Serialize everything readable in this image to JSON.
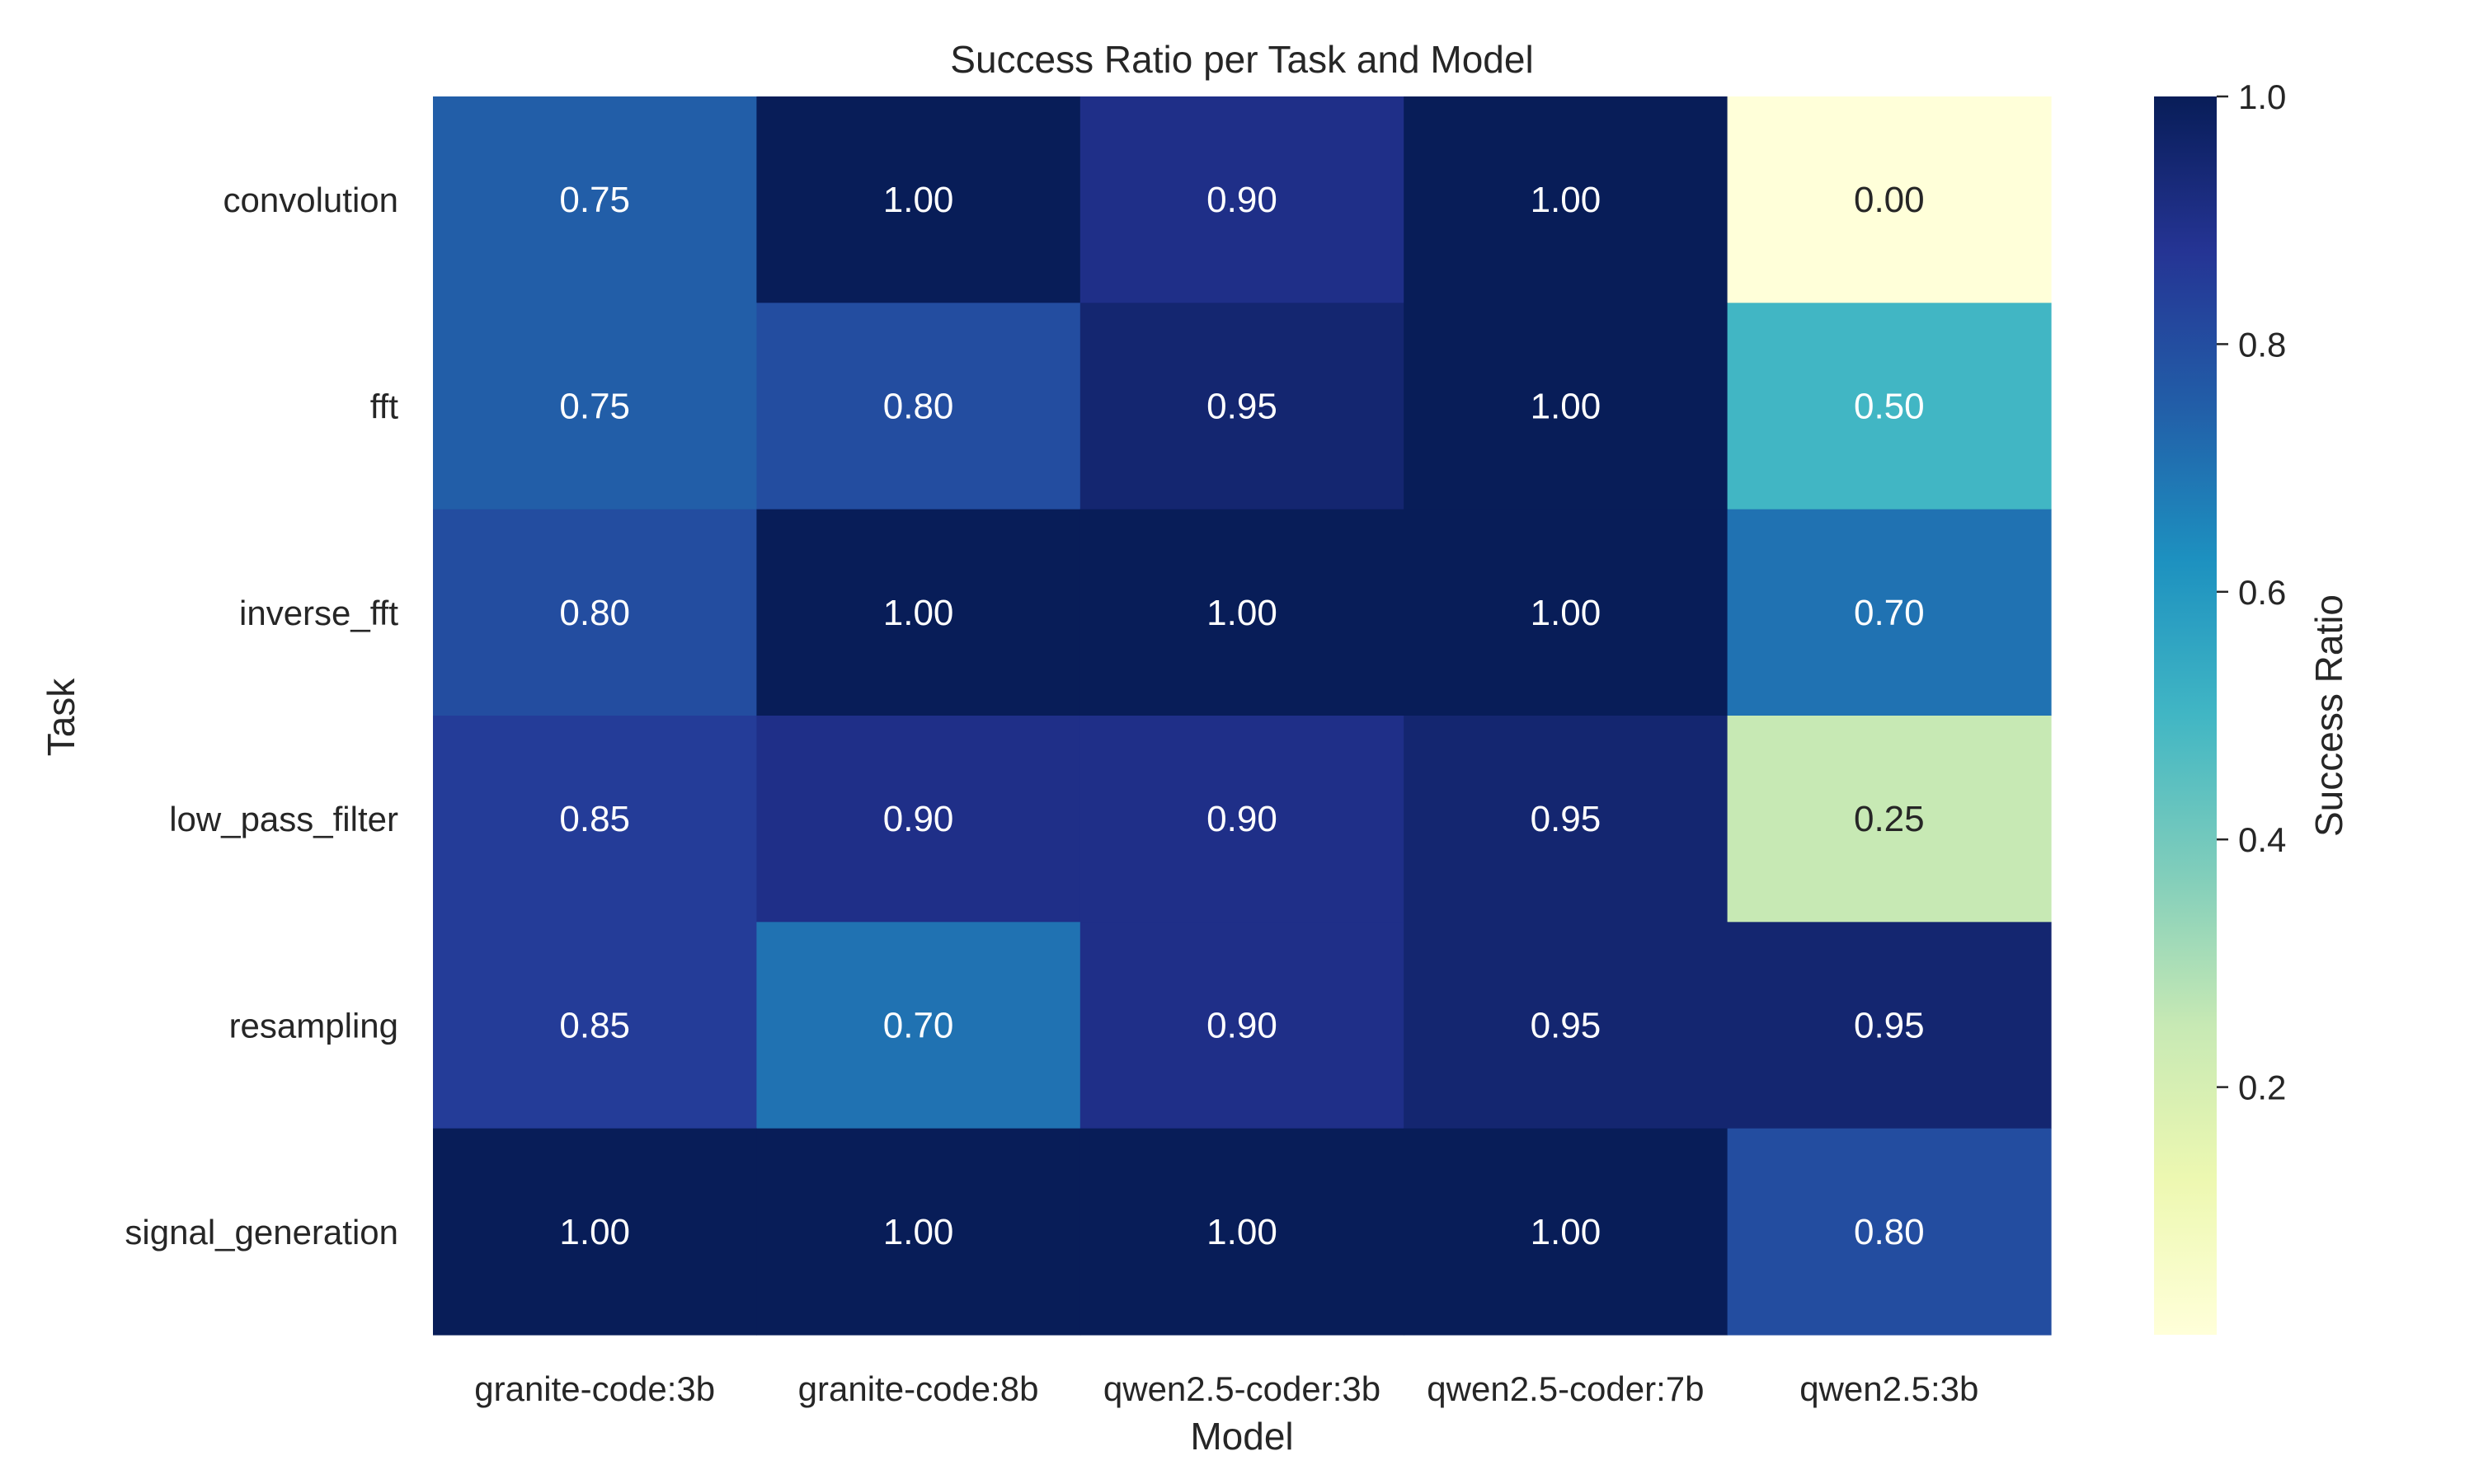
{
  "chart_data": {
    "type": "heatmap",
    "title": "Success Ratio per Task and Model",
    "xlabel": "Model",
    "ylabel": "Task",
    "x_categories": [
      "granite-code:3b",
      "granite-code:8b",
      "qwen2.5-coder:3b",
      "qwen2.5-coder:7b",
      "qwen2.5:3b"
    ],
    "y_categories": [
      "convolution",
      "fft",
      "inverse_fft",
      "low_pass_filter",
      "resampling",
      "signal_generation"
    ],
    "values": [
      [
        0.75,
        1.0,
        0.9,
        1.0,
        0.0
      ],
      [
        0.75,
        0.8,
        0.95,
        1.0,
        0.5
      ],
      [
        0.8,
        1.0,
        1.0,
        1.0,
        0.7
      ],
      [
        0.85,
        0.9,
        0.9,
        0.95,
        0.25
      ],
      [
        0.85,
        0.7,
        0.9,
        0.95,
        0.95
      ],
      [
        1.0,
        1.0,
        1.0,
        1.0,
        0.8
      ]
    ],
    "value_format": "0.00",
    "colormap": "YlGnBu",
    "colorbar": {
      "label": "Success Ratio",
      "range": [
        0,
        1
      ],
      "ticks": [
        0.2,
        0.4,
        0.6,
        0.8,
        1.0
      ],
      "tick_labels": [
        "0.2",
        "0.4",
        "0.6",
        "0.8",
        "1.0"
      ]
    },
    "grid": false,
    "colorbar_position": "right"
  }
}
